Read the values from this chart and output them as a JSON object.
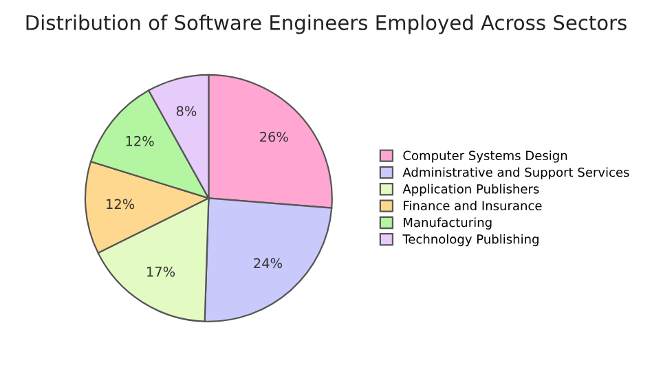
{
  "chart_data": {
    "type": "pie",
    "title": "Distribution of Software Engineers Employed Across Sectors",
    "categories": [
      "Computer Systems Design",
      "Administrative and Support Services",
      "Application Publishers",
      "Finance and Insurance",
      "Manufacturing",
      "Technology Publishing"
    ],
    "values": [
      26,
      24,
      17,
      12,
      12,
      8
    ],
    "colors": [
      "#ffa6d2",
      "#c9c9fc",
      "#e3fac2",
      "#ffd88f",
      "#b3f5a0",
      "#e6ccfa"
    ],
    "value_labels": [
      "26%",
      "24%",
      "17%",
      "12%",
      "12%",
      "8%"
    ],
    "legend": "right"
  }
}
